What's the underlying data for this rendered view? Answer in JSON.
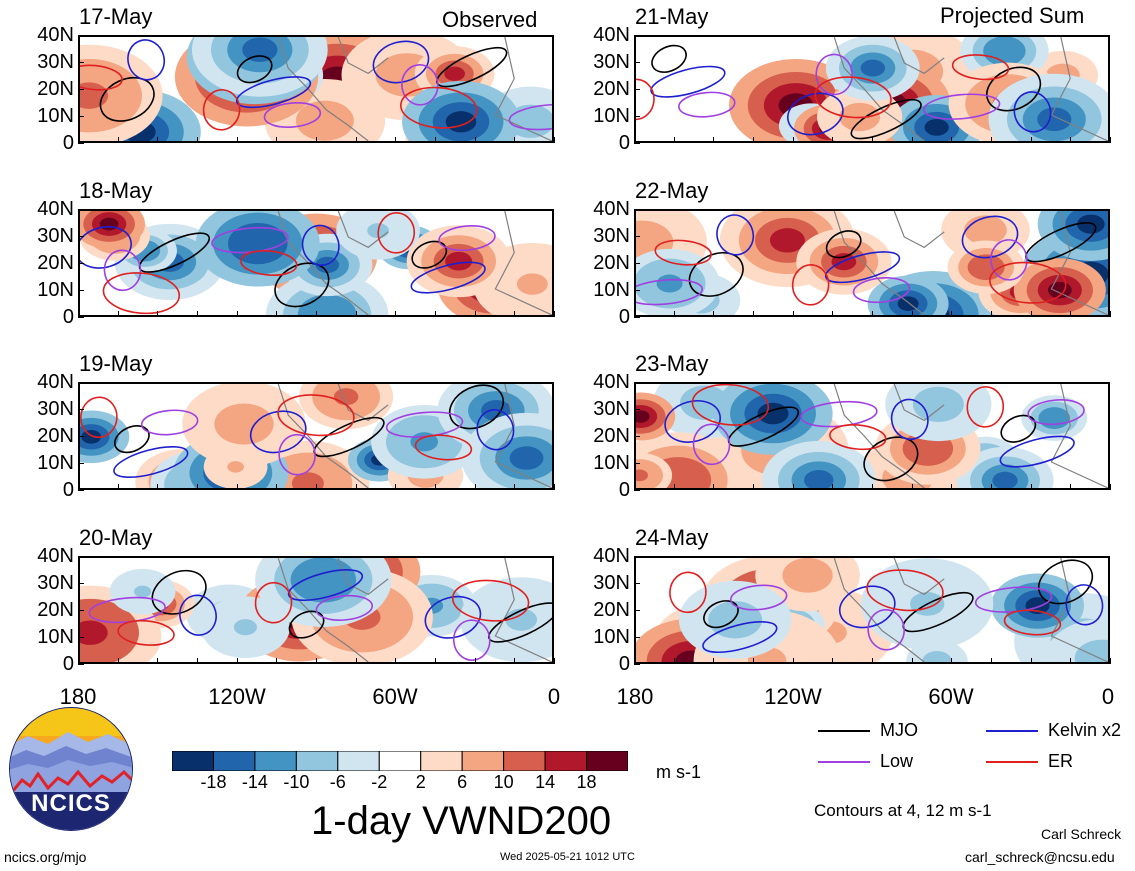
{
  "columns": {
    "left_title": "Observed",
    "right_title": "Projected Sum"
  },
  "panels_left": [
    "17-May",
    "18-May",
    "19-May",
    "20-May"
  ],
  "panels_right": [
    "21-May",
    "22-May",
    "23-May",
    "24-May"
  ],
  "lat_labels": [
    "40N",
    "30N",
    "20N",
    "10N",
    "0"
  ],
  "lon_labels": [
    "180",
    "120W",
    "60W",
    "0"
  ],
  "chart_data": {
    "type": "heatmap",
    "title": "1-day VWND200",
    "variable": "VWND200",
    "units": "m s-1",
    "colorbar": {
      "tick_labels": [
        "-18",
        "-14",
        "-10",
        "-6",
        "-2",
        "2",
        "6",
        "10",
        "14",
        "18"
      ],
      "colors": [
        "#08306b",
        "#2166ac",
        "#4393c3",
        "#92c5de",
        "#d1e5f0",
        "#ffffff",
        "#fddbc7",
        "#f4a582",
        "#d6604d",
        "#b2182b",
        "#67001f"
      ]
    },
    "x_axis": {
      "ticks": [
        "180",
        "120W",
        "60W",
        "0"
      ],
      "range": [
        "180",
        "0"
      ]
    },
    "y_axis": {
      "ticks": [
        "0",
        "10N",
        "20N",
        "30N",
        "40N"
      ],
      "range": [
        "0",
        "40N"
      ]
    },
    "contour_note": "Contours at 4, 12 m s-1",
    "legend": [
      {
        "name": "MJO",
        "color": "#000000"
      },
      {
        "name": "Kelvin x2",
        "color": "#1f1fd0"
      },
      {
        "name": "Low",
        "color": "#a040e0"
      },
      {
        "name": "ER",
        "color": "#e02020"
      }
    ]
  },
  "footer": {
    "logo_text": "NCICS",
    "url": "ncics.org/mjo",
    "timestamp": "Wed 2025-05-21 1012 UTC",
    "author": "Carl Schreck",
    "email": "carl_schreck@ncsu.edu"
  }
}
